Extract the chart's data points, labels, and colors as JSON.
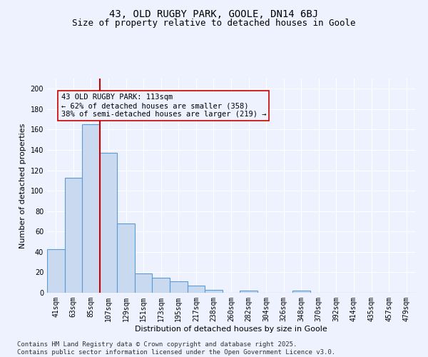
{
  "title_line1": "43, OLD RUGBY PARK, GOOLE, DN14 6BJ",
  "title_line2": "Size of property relative to detached houses in Goole",
  "xlabel": "Distribution of detached houses by size in Goole",
  "ylabel": "Number of detached properties",
  "categories": [
    "41sqm",
    "63sqm",
    "85sqm",
    "107sqm",
    "129sqm",
    "151sqm",
    "173sqm",
    "195sqm",
    "217sqm",
    "238sqm",
    "260sqm",
    "282sqm",
    "304sqm",
    "326sqm",
    "348sqm",
    "370sqm",
    "392sqm",
    "414sqm",
    "435sqm",
    "457sqm",
    "479sqm"
  ],
  "values": [
    43,
    113,
    165,
    137,
    68,
    19,
    15,
    11,
    7,
    3,
    0,
    2,
    0,
    0,
    2,
    0,
    0,
    0,
    0,
    0,
    0
  ],
  "bar_color": "#c9d9f0",
  "bar_edge_color": "#5b9bd5",
  "bar_edge_width": 0.8,
  "property_line_x": 2.5,
  "annotation_text_line1": "43 OLD RUGBY PARK: 113sqm",
  "annotation_text_line2": "← 62% of detached houses are smaller (358)",
  "annotation_text_line3": "38% of semi-detached houses are larger (219) →",
  "red_line_color": "#cc0000",
  "annotation_rect_color": "#cc0000",
  "ylim": [
    0,
    210
  ],
  "yticks": [
    0,
    20,
    40,
    60,
    80,
    100,
    120,
    140,
    160,
    180,
    200
  ],
  "background_color": "#eef2ff",
  "grid_color": "#ffffff",
  "footer_line1": "Contains HM Land Registry data © Crown copyright and database right 2025.",
  "footer_line2": "Contains public sector information licensed under the Open Government Licence v3.0.",
  "title_fontsize": 10,
  "subtitle_fontsize": 9,
  "axis_label_fontsize": 8,
  "tick_fontsize": 7,
  "annotation_fontsize": 7.5,
  "footer_fontsize": 6.5
}
